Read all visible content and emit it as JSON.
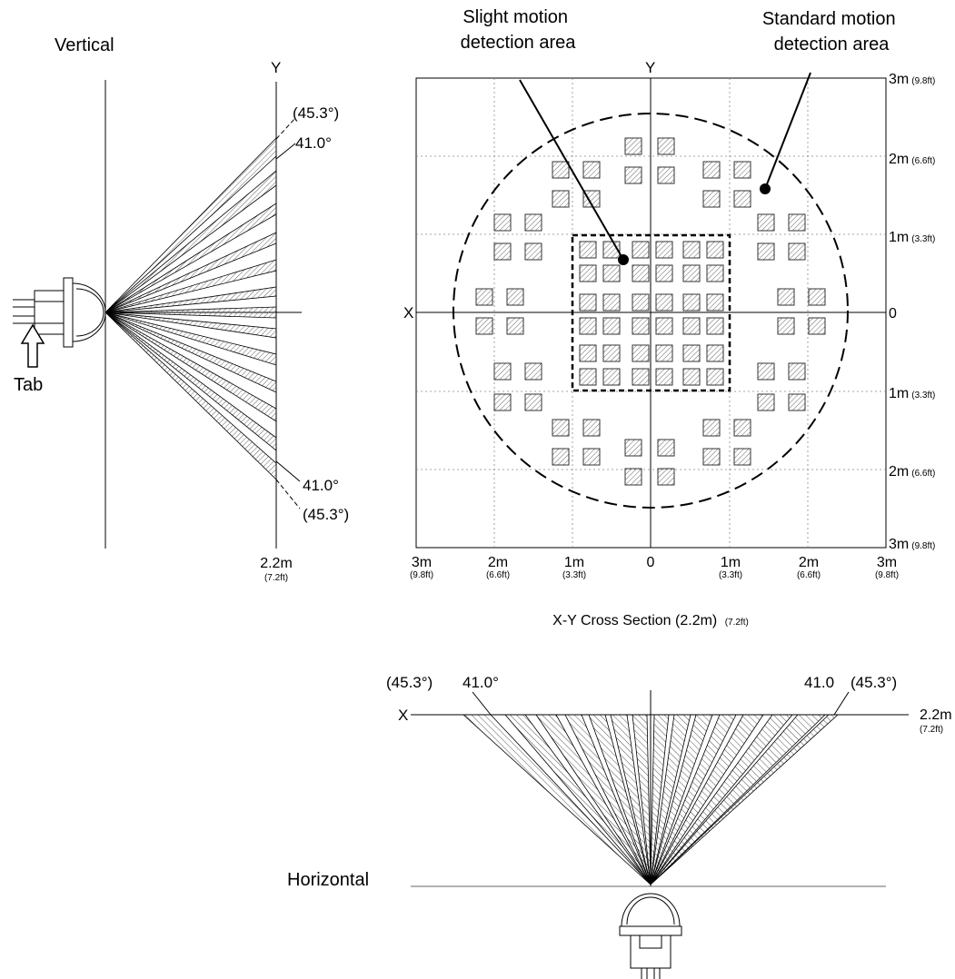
{
  "vertical": {
    "title": "Vertical",
    "axis_y": "Y",
    "angle_upper_outer": "(45.3°)",
    "angle_upper_inner": "41.0°",
    "angle_lower_inner": "41.0°",
    "angle_lower_outer": "(45.3°)",
    "distance_m": "2.2m",
    "distance_ft": "(7.2ft)",
    "tab_label": "Tab"
  },
  "cross_section": {
    "label_slight": "Slight motion\ndetection area",
    "label_standard": "Standard motion\ndetection area",
    "axis_x": "X",
    "axis_y": "Y",
    "caption_main": "X-Y Cross Section (2.2m)",
    "caption_ft": "(7.2ft)",
    "right_ticks": [
      {
        "m": "3m",
        "ft": "(9.8ft)"
      },
      {
        "m": "2m",
        "ft": "(6.6ft)"
      },
      {
        "m": "1m",
        "ft": "(3.3ft)"
      },
      {
        "m": "0",
        "ft": ""
      },
      {
        "m": "1m",
        "ft": "(3.3ft)"
      },
      {
        "m": "2m",
        "ft": "(6.6ft)"
      },
      {
        "m": "3m",
        "ft": "(9.8ft)"
      }
    ],
    "bottom_ticks": [
      {
        "m": "3m",
        "ft": "(9.8ft)"
      },
      {
        "m": "2m",
        "ft": "(6.6ft)"
      },
      {
        "m": "1m",
        "ft": "(3.3ft)"
      },
      {
        "m": "0",
        "ft": ""
      },
      {
        "m": "1m",
        "ft": "(3.3ft)"
      },
      {
        "m": "2m",
        "ft": "(6.6ft)"
      },
      {
        "m": "3m",
        "ft": "(9.8ft)"
      }
    ]
  },
  "horizontal": {
    "title": "Horizontal",
    "axis_x": "X",
    "angle_left_outer": "(45.3°)",
    "angle_left_inner": "41.0°",
    "angle_right_inner": "41.0",
    "angle_right_outer": "(45.3°)",
    "distance_m": "2.2m",
    "distance_ft": "(7.2ft)"
  },
  "colors": {
    "line": "#000000",
    "grid": "#888888",
    "zone_fill": "#f2f2f2"
  }
}
